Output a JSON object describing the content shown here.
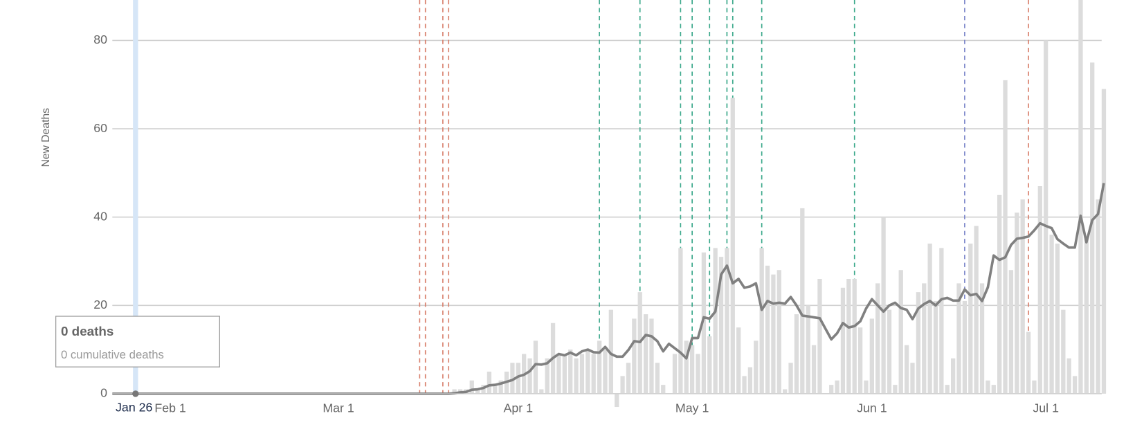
{
  "chart_data": {
    "type": "bar",
    "y_label": "New Deaths",
    "x": [
      "Jan 22",
      "Jan 23",
      "Jan 24",
      "Jan 25",
      "Jan 26",
      "Jan 27",
      "Jan 28",
      "Jan 29",
      "Jan 30",
      "Jan 31",
      "Feb 1",
      "Feb 2",
      "Feb 3",
      "Feb 4",
      "Feb 5",
      "Feb 6",
      "Feb 7",
      "Feb 8",
      "Feb 9",
      "Feb 10",
      "Feb 11",
      "Feb 12",
      "Feb 13",
      "Feb 14",
      "Feb 15",
      "Feb 16",
      "Feb 17",
      "Feb 18",
      "Feb 19",
      "Feb 20",
      "Feb 21",
      "Feb 22",
      "Feb 23",
      "Feb 24",
      "Feb 25",
      "Feb 26",
      "Feb 27",
      "Feb 28",
      "Feb 29",
      "Mar 1",
      "Mar 2",
      "Mar 3",
      "Mar 4",
      "Mar 5",
      "Mar 6",
      "Mar 7",
      "Mar 8",
      "Mar 9",
      "Mar 10",
      "Mar 11",
      "Mar 12",
      "Mar 13",
      "Mar 14",
      "Mar 15",
      "Mar 16",
      "Mar 17",
      "Mar 18",
      "Mar 19",
      "Mar 20",
      "Mar 21",
      "Mar 22",
      "Mar 23",
      "Mar 24",
      "Mar 25",
      "Mar 26",
      "Mar 27",
      "Mar 28",
      "Mar 29",
      "Mar 30",
      "Mar 31",
      "Apr 1",
      "Apr 2",
      "Apr 3",
      "Apr 4",
      "Apr 5",
      "Apr 6",
      "Apr 7",
      "Apr 8",
      "Apr 9",
      "Apr 10",
      "Apr 11",
      "Apr 12",
      "Apr 13",
      "Apr 14",
      "Apr 15",
      "Apr 16",
      "Apr 17",
      "Apr 18",
      "Apr 19",
      "Apr 20",
      "Apr 21",
      "Apr 22",
      "Apr 23",
      "Apr 24",
      "Apr 25",
      "Apr 26",
      "Apr 27",
      "Apr 28",
      "Apr 29",
      "Apr 30",
      "May 1",
      "May 2",
      "May 3",
      "May 4",
      "May 5",
      "May 6",
      "May 7",
      "May 8",
      "May 9",
      "May 10",
      "May 11",
      "May 12",
      "May 13",
      "May 14",
      "May 15",
      "May 16",
      "May 17",
      "May 18",
      "May 19",
      "May 20",
      "May 21",
      "May 22",
      "May 23",
      "May 24",
      "May 25",
      "May 26",
      "May 27",
      "May 28",
      "May 29",
      "May 30",
      "May 31",
      "Jun 1",
      "Jun 2",
      "Jun 3",
      "Jun 4",
      "Jun 5",
      "Jun 6",
      "Jun 7",
      "Jun 8",
      "Jun 9",
      "Jun 10",
      "Jun 11",
      "Jun 12",
      "Jun 13",
      "Jun 14",
      "Jun 15",
      "Jun 16",
      "Jun 17",
      "Jun 18",
      "Jun 19",
      "Jun 20",
      "Jun 21",
      "Jun 22",
      "Jun 23",
      "Jun 24",
      "Jun 25",
      "Jun 26",
      "Jun 27",
      "Jun 28",
      "Jun 29",
      "Jun 30",
      "Jul 1",
      "Jul 2",
      "Jul 3",
      "Jul 4",
      "Jul 5",
      "Jul 6",
      "Jul 7",
      "Jul 8",
      "Jul 9",
      "Jul 10",
      "Jul 11"
    ],
    "series": [
      {
        "type": "bar",
        "color": "#dcdcdc",
        "values": [
          0,
          0,
          0,
          0,
          0,
          0,
          0,
          0,
          0,
          0,
          0,
          0,
          0,
          0,
          0,
          0,
          0,
          0,
          0,
          0,
          0,
          0,
          0,
          0,
          0,
          0,
          0,
          0,
          0,
          0,
          0,
          0,
          0,
          0,
          0,
          0,
          0,
          0,
          0,
          0,
          0,
          0,
          0,
          0,
          0,
          0,
          0,
          0,
          0,
          0,
          0,
          0,
          0,
          0,
          0,
          0,
          0,
          0,
          0,
          1,
          1,
          1,
          3,
          1,
          2,
          5,
          2,
          3,
          5,
          7,
          7,
          9,
          8,
          12,
          1,
          8,
          16,
          9,
          9,
          10,
          8,
          9,
          10,
          9,
          12,
          10,
          19,
          -3,
          4,
          7,
          17,
          23,
          18,
          17,
          7,
          2,
          0,
          9,
          33,
          12,
          11,
          9,
          32,
          13,
          33,
          31,
          33,
          67,
          15,
          4,
          6,
          12,
          33,
          29,
          27,
          28,
          1,
          7,
          18,
          42,
          20,
          11,
          26,
          0,
          2,
          3,
          24,
          26,
          26,
          15,
          3,
          17,
          25,
          40,
          19,
          2,
          28,
          11,
          7,
          23,
          25,
          34,
          21,
          33,
          2,
          8,
          25,
          21,
          34,
          38,
          25,
          3,
          2,
          45,
          71,
          28,
          41,
          44,
          14,
          3,
          47,
          80,
          36,
          34,
          19,
          8,
          4,
          90,
          35,
          75,
          44,
          69
        ]
      },
      {
        "type": "line",
        "color": "#808080",
        "values": [
          0,
          0,
          0,
          0,
          0,
          0,
          0,
          0,
          0,
          0,
          0,
          0,
          0,
          0,
          0,
          0,
          0,
          0,
          0,
          0,
          0,
          0,
          0,
          0,
          0,
          0,
          0,
          0,
          0,
          0,
          0,
          0,
          0,
          0,
          0,
          0,
          0,
          0,
          0,
          0,
          0,
          0,
          0,
          0,
          0,
          0,
          0,
          0,
          0,
          0,
          0,
          0,
          0,
          0,
          0,
          0,
          0,
          0,
          0,
          0.1,
          0.3,
          0.4,
          0.9,
          1,
          1.3,
          1.9,
          2,
          2.3,
          2.7,
          3.1,
          3.9,
          4.3,
          5.1,
          6.7,
          6.6,
          6.9,
          8.1,
          9,
          8.7,
          9.3,
          8.7,
          9.6,
          10,
          9.4,
          9.3,
          10.6,
          9,
          8.4,
          8.4,
          9.9,
          11.9,
          11.7,
          13.3,
          13,
          11.9,
          9.6,
          11.3,
          10.3,
          9.3,
          8,
          12.6,
          12.6,
          17.3,
          17,
          18.6,
          27,
          29,
          25,
          26,
          24,
          24.3,
          25,
          19,
          21,
          20.4,
          20.6,
          20.4,
          21.9,
          20,
          17.7,
          17.5,
          17.3,
          17.1,
          14.7,
          12.3,
          13.7,
          16,
          15,
          15.3,
          16.4,
          19.3,
          21.4,
          20,
          18.6,
          20,
          20.6,
          19.4,
          19,
          16.9,
          19.3,
          20.3,
          21,
          20,
          21.4,
          21.7,
          21.1,
          21.1,
          23.6,
          22.3,
          22.6,
          21,
          24.1,
          31.3,
          30.3,
          30.9,
          33.7,
          35.1,
          35.3,
          35.6,
          37,
          38.6,
          38,
          37.5,
          35,
          34,
          33.1,
          33.1,
          40.3,
          34.3,
          39.3,
          40.7,
          47.7
        ]
      }
    ],
    "event_lines": [
      {
        "x": "Mar 15",
        "color": "#d9826f"
      },
      {
        "x": "Mar 16",
        "color": "#d9826f"
      },
      {
        "x": "Mar 19",
        "color": "#d9826f"
      },
      {
        "x": "Mar 20",
        "color": "#d9826f"
      },
      {
        "x": "Apr 15",
        "color": "#3aa88a"
      },
      {
        "x": "Apr 22",
        "color": "#3aa88a"
      },
      {
        "x": "Apr 29",
        "color": "#3aa88a"
      },
      {
        "x": "May 1",
        "color": "#3aa88a"
      },
      {
        "x": "May 4",
        "color": "#3aa88a"
      },
      {
        "x": "May 7",
        "color": "#3aa88a"
      },
      {
        "x": "May 8",
        "color": "#3aa88a"
      },
      {
        "x": "May 13",
        "color": "#3aa88a"
      },
      {
        "x": "May 29",
        "color": "#3aa88a"
      },
      {
        "x": "Jun 17",
        "color": "#7b86c9"
      },
      {
        "x": "Jun 28",
        "color": "#d9826f"
      }
    ],
    "xticks": [
      "Feb 1",
      "Mar 1",
      "Apr 1",
      "May 1",
      "Jun 1",
      "Jul 1"
    ],
    "ylim": [
      0,
      89
    ],
    "yticks": [
      0,
      20,
      40,
      60,
      80
    ],
    "grid": true,
    "tooltip": {
      "x": "Jan 26",
      "title": "0 deaths",
      "detail": "0 cumulative deaths"
    }
  }
}
